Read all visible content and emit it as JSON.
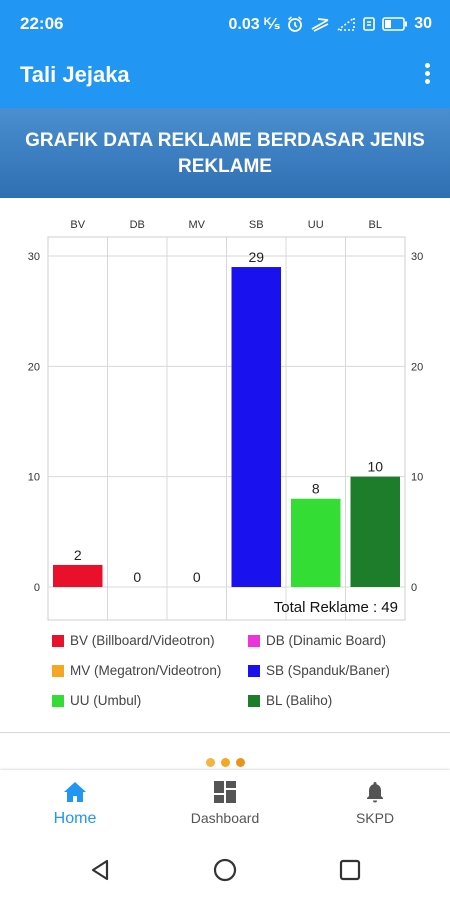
{
  "status_bar": {
    "time": "22:06",
    "speed": "0.03 ᴷ⁄ₛ",
    "battery": "30",
    "icons": [
      "alarm-icon",
      "cast-icon",
      "signal-icon",
      "wifi-icon",
      "battery-icon"
    ]
  },
  "app_bar": {
    "title": "Tali Jejaka",
    "menu_icon": "more-vertical-icon"
  },
  "banner": {
    "title": "GRAFIK DATA REKLAME BERDASAR JENIS REKLAME"
  },
  "chart_data": {
    "type": "bar",
    "categories": [
      "BV",
      "DB",
      "MV",
      "SB",
      "UU",
      "BL"
    ],
    "values": [
      2,
      0,
      0,
      29,
      8,
      10
    ],
    "colors": [
      "#e8102a",
      "#ee33dd",
      "#f5a623",
      "#1a12ee",
      "#33dd33",
      "#1e7d2b"
    ],
    "yticks": [
      0,
      10,
      20,
      30
    ],
    "ylim": [
      0,
      30
    ],
    "grid": true,
    "total_label": "Total Reklame  : 49",
    "legend": [
      {
        "label": "BV (Billboard/Videotron)",
        "color": "#e8102a"
      },
      {
        "label": "DB (Dinamic Board)",
        "color": "#ee33dd"
      },
      {
        "label": "MV (Megatron/Videotron)",
        "color": "#f5a623"
      },
      {
        "label": "SB (Spanduk/Baner)",
        "color": "#1a12ee"
      },
      {
        "label": "UU (Umbul)",
        "color": "#33dd33"
      },
      {
        "label": "BL (Baliho)",
        "color": "#1e7d2b"
      }
    ]
  },
  "page_indicator": {
    "dots": [
      "#f5b342",
      "#f5a623",
      "#e8941a"
    ]
  },
  "bottom_nav": {
    "items": [
      {
        "label": "Home",
        "icon": "home-icon",
        "active": true
      },
      {
        "label": "Dashboard",
        "icon": "dashboard-icon",
        "active": false
      },
      {
        "label": "SKPD",
        "icon": "bell-icon",
        "active": false
      }
    ],
    "active_color": "#2196f3"
  },
  "system_nav": {
    "icons": [
      "back-icon",
      "home-circle-icon",
      "recents-icon"
    ]
  }
}
